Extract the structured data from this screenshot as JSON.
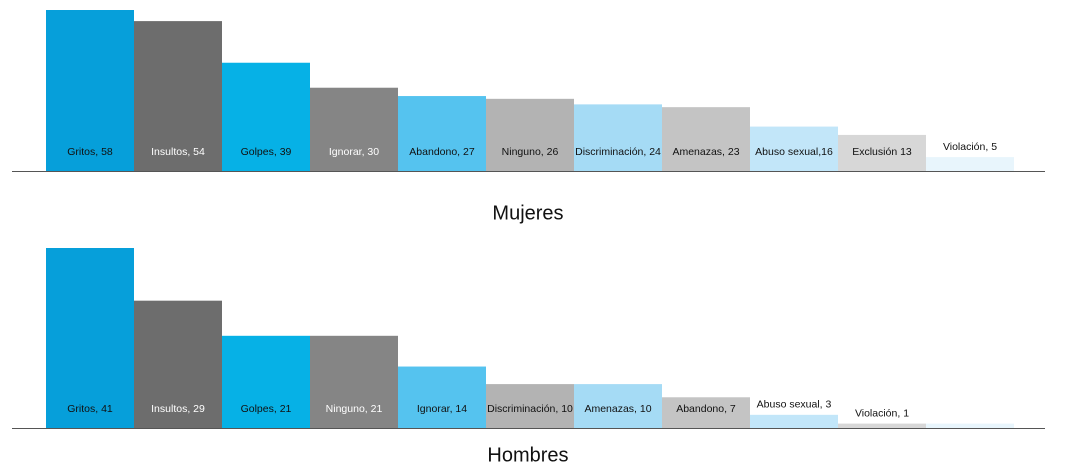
{
  "chart_data": [
    {
      "type": "bar",
      "title": "Mujeres",
      "values": [
        58,
        54,
        39,
        30,
        27,
        26,
        24,
        23,
        16,
        13,
        5
      ],
      "value_labels": [
        "Gritos, 58",
        "Insultos, 54",
        "Golpes, 39",
        "Ignorar, 30",
        "Abandono, 27",
        "Ninguno, 26",
        "Discriminación, 24",
        "Amenazas, 23",
        "Abuso sexual,16",
        "Exclusión 13",
        "Violación, 5"
      ],
      "colors": [
        "#069fda",
        "#6d6d6d",
        "#06b1e6",
        "#858585",
        "#55c3ef",
        "#b3b3b3",
        "#a5dbf5",
        "#c4c4c4",
        "#c2e6f9",
        "#d7d7d7",
        "#e8f5fc"
      ],
      "label_colors": [
        "#111",
        "#fff",
        "#111",
        "#fff",
        "#111",
        "#111",
        "#111",
        "#111",
        "#111",
        "#111",
        "#111"
      ],
      "ylim": [
        0,
        58
      ]
    },
    {
      "type": "bar",
      "title": "Hombres",
      "values": [
        41,
        29,
        21,
        21,
        14,
        10,
        10,
        7,
        3,
        1,
        1
      ],
      "value_labels": [
        "Gritos, 41",
        "Insultos, 29",
        "Golpes, 21",
        "Ninguno, 21",
        "Ignorar, 14",
        "Discriminación, 10",
        "Amenazas, 10",
        "Abandono, 7",
        "Abuso sexual, 3",
        "Violación, 1",
        null
      ],
      "colors": [
        "#069fda",
        "#6d6d6d",
        "#06b1e6",
        "#858585",
        "#55c3ef",
        "#b3b3b3",
        "#a5dbf5",
        "#c4c4c4",
        "#c2e6f9",
        "#d7d7d7",
        "#e8f5fc"
      ],
      "label_colors": [
        "#111",
        "#fff",
        "#111",
        "#fff",
        "#111",
        "#111",
        "#111",
        "#111",
        "#111",
        "#111",
        "#111"
      ],
      "ylim": [
        0,
        41
      ]
    }
  ]
}
